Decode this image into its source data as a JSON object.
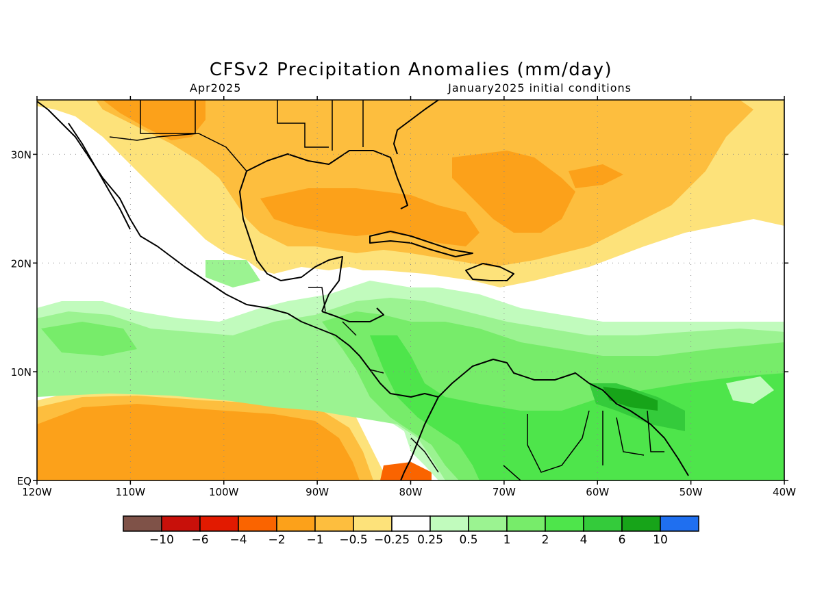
{
  "title": "CFSv2 Precipitation Anomalies (mm/day)",
  "subtitle_left": "Apr2025",
  "subtitle_right": "January2025 initial conditions",
  "map": {
    "lon_range": [
      -120,
      -40
    ],
    "lat_range": [
      0,
      35
    ],
    "x_ticks": [
      {
        "lon": -120,
        "label": "120W"
      },
      {
        "lon": -110,
        "label": "110W"
      },
      {
        "lon": -100,
        "label": "100W"
      },
      {
        "lon": -90,
        "label": "90W"
      },
      {
        "lon": -80,
        "label": "80W"
      },
      {
        "lon": -70,
        "label": "70W"
      },
      {
        "lon": -60,
        "label": "60W"
      },
      {
        "lon": -50,
        "label": "50W"
      },
      {
        "lon": -40,
        "label": "40W"
      }
    ],
    "y_ticks": [
      {
        "lat": 0,
        "label": "EQ"
      },
      {
        "lat": 10,
        "label": "10N"
      },
      {
        "lat": 20,
        "label": "20N"
      },
      {
        "lat": 30,
        "label": "30N"
      }
    ],
    "grid": "dotted"
  },
  "colorbar": {
    "colors": [
      "#7f5248",
      "#c8100a",
      "#e21a00",
      "#fa6400",
      "#fca11a",
      "#fdbe3e",
      "#fde27a",
      "#ffffff",
      "#c1fbbd",
      "#9bf391",
      "#77ec6a",
      "#4ee54b",
      "#34cb3b",
      "#17a419",
      "#1f6ff0"
    ],
    "labels": [
      "−10",
      "−6",
      "−4",
      "−2",
      "−1",
      "−0.5",
      "−0.25",
      "0.25",
      "0.5",
      "1",
      "2",
      "4",
      "6",
      "10"
    ]
  }
}
